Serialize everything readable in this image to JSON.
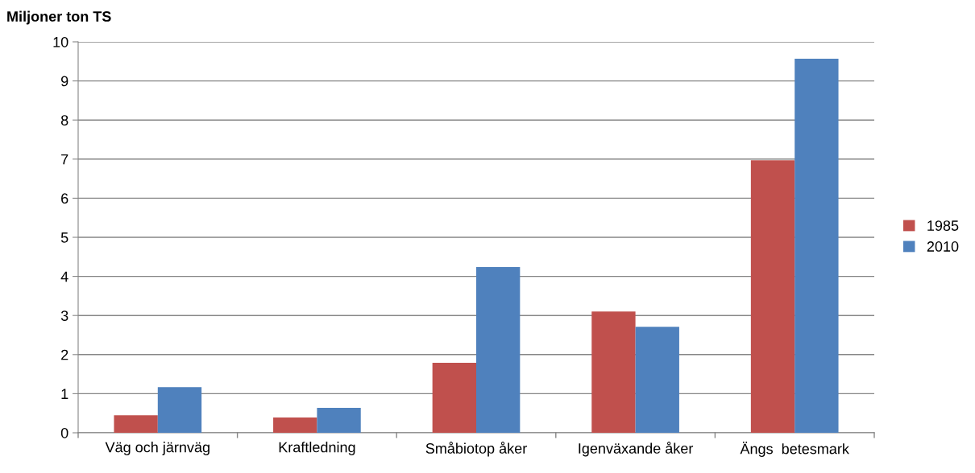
{
  "chart_data": {
    "type": "bar",
    "ylabel": "Miljoner ton TS",
    "categories": [
      "Väg och järnväg",
      "Kraftledning",
      "Småbiotop åker",
      "Igenväxande åker",
      "Ängs  betesmark"
    ],
    "series": [
      {
        "name": "1985",
        "color": "#c0504d",
        "values": [
          0.45,
          0.39,
          1.79,
          3.1,
          6.97
        ]
      },
      {
        "name": "2010",
        "color": "#4f81bd",
        "values": [
          1.17,
          0.64,
          4.24,
          2.71,
          9.57
        ]
      }
    ],
    "ylim": [
      0,
      10
    ],
    "yticks": [
      0,
      1,
      2,
      3,
      4,
      5,
      6,
      7,
      8,
      9,
      10
    ],
    "grid": "y",
    "legend": "right"
  }
}
